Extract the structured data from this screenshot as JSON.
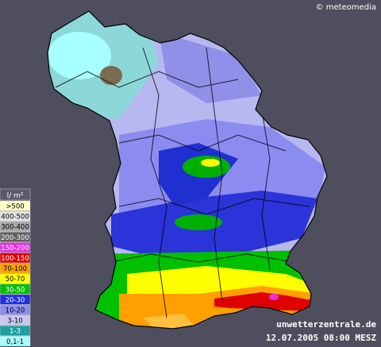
{
  "credit": "© meteomedia",
  "legend": {
    "title": "l/ m²",
    "items": [
      {
        "label": ">500",
        "color": "#ffffc8"
      },
      {
        "label": "400-500",
        "color": "#e4e4e4"
      },
      {
        "label": "300-400",
        "color": "#a8a8a8"
      },
      {
        "label": "200-300",
        "color": "#606060"
      },
      {
        "label": "150-200",
        "color": "#e030e0"
      },
      {
        "label": "100-150",
        "color": "#e00000"
      },
      {
        "label": "70-100",
        "color": "#ffa000"
      },
      {
        "label": "50-70",
        "color": "#ffff00"
      },
      {
        "label": "30-50",
        "color": "#00c000"
      },
      {
        "label": "20-30",
        "color": "#2030e0"
      },
      {
        "label": "10-20",
        "color": "#8c8cf0"
      },
      {
        "label": "3-10",
        "color": "#c8c8f0"
      },
      {
        "label": "1-3",
        "color": "#20a0a0"
      },
      {
        "label": "0,1-1",
        "color": "#a8ffff"
      }
    ]
  },
  "source": "unwetterzentrale.de",
  "timestamp": "12.07.2005 08:00 MESZ"
}
